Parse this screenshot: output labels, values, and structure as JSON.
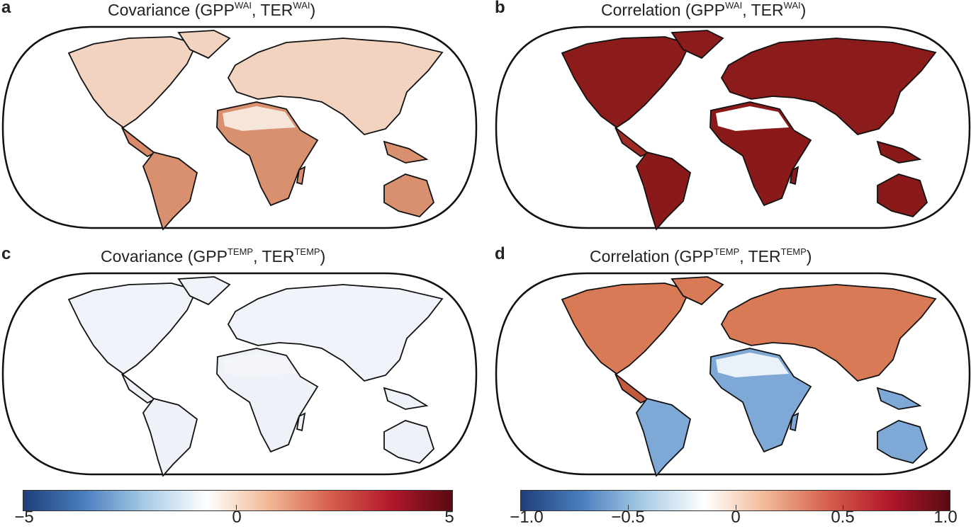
{
  "panels": [
    {
      "letter": "a",
      "title_prefix": "Covariance (GPP",
      "sup1": "WAI",
      "mid": ", TER",
      "sup2": "WAI",
      "suffix": ")",
      "fill": "#f2d3c0",
      "fill_alt": "#d98a6a",
      "south_fill": "#d9906f",
      "sahara": "#f6e6da"
    },
    {
      "letter": "b",
      "title_prefix": "Correlation (GPP",
      "sup1": "WAI",
      "mid": ", TER",
      "sup2": "WAI",
      "suffix": ")",
      "fill": "#8c1b1b",
      "fill_alt": "#9e2a24",
      "south_fill": "#8a1a1a",
      "sahara": "#ffffff"
    },
    {
      "letter": "c",
      "title_prefix": "Covariance (GPP",
      "sup1": "TEMP",
      "mid": ", TER",
      "sup2": "TEMP",
      "suffix": ")",
      "fill": "#f0f3f9",
      "fill_alt": "#eef2f8",
      "south_fill": "#eef2f8",
      "sahara": "#f3f5fa"
    },
    {
      "letter": "d",
      "title_prefix": "Correlation (GPP",
      "sup1": "TEMP",
      "mid": ", TER",
      "sup2": "TEMP",
      "suffix": ")",
      "fill": "#d87a55",
      "fill_alt": "#c25a3e",
      "south_fill": "#7ea9d6",
      "sahara": "#eaf1f9"
    }
  ],
  "colorbars": [
    {
      "ticks": [
        "−5",
        "0",
        "5"
      ],
      "range": [
        -5,
        5
      ]
    },
    {
      "ticks": [
        "−1.0",
        "−0.5",
        "0",
        "0.5",
        "1.0"
      ],
      "range": [
        -1.0,
        1.0
      ]
    }
  ],
  "colormap": [
    "#1f3f7a",
    "#4a7fbf",
    "#a9cce6",
    "#ffffff",
    "#f1b896",
    "#d6604d",
    "#b2182b",
    "#5a0a12"
  ]
}
